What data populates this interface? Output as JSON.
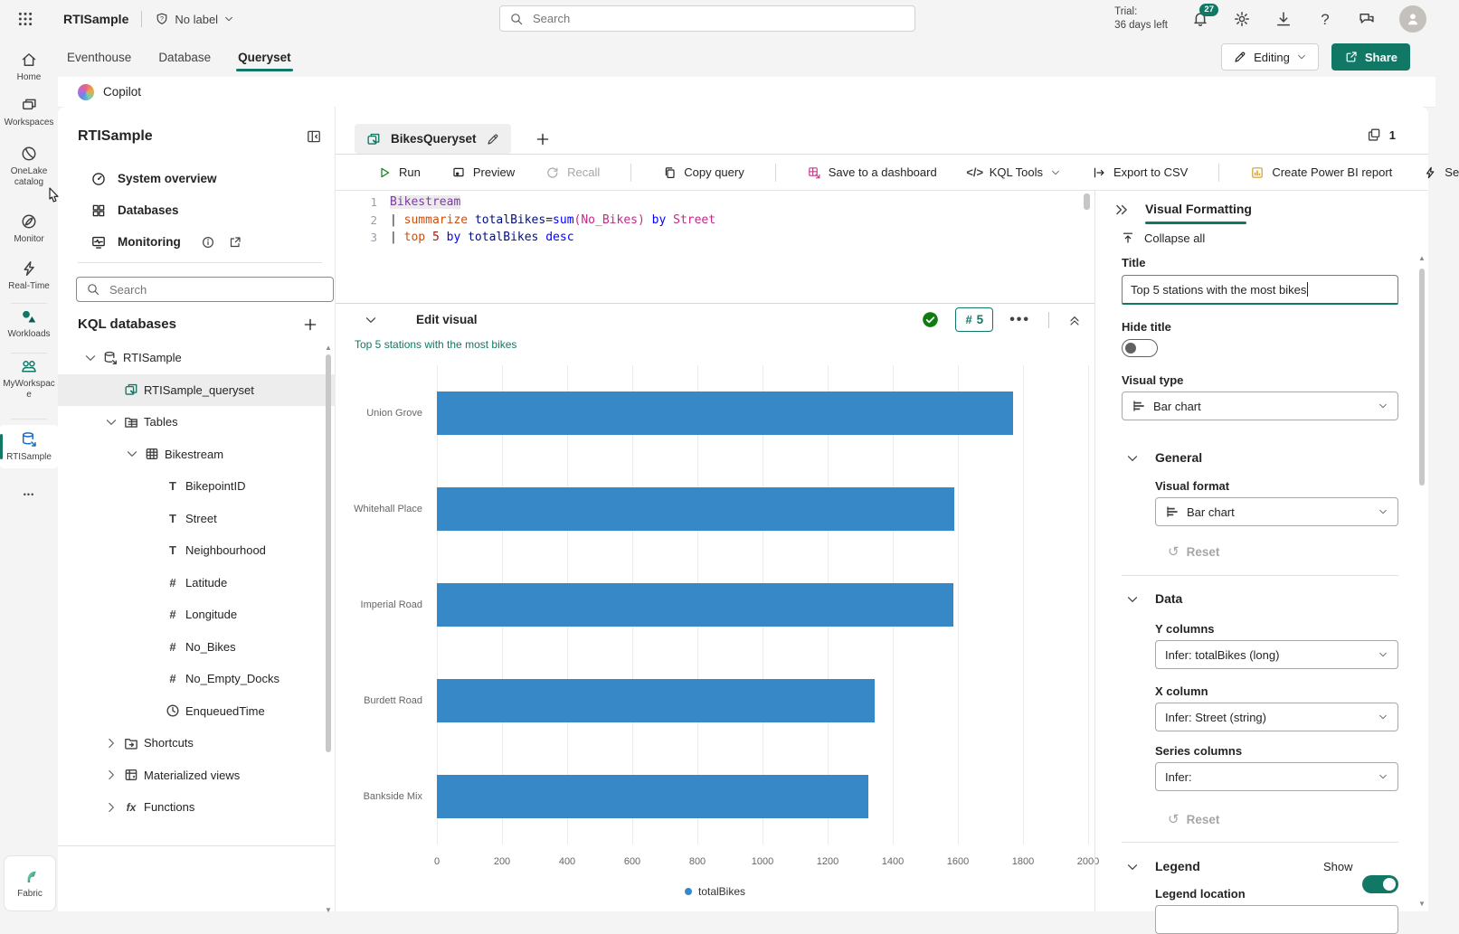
{
  "topbar": {
    "app_name": "RTISample",
    "label_button": "No label",
    "search_placeholder": "Search",
    "trial_line1": "Trial:",
    "trial_line2": "36 days left",
    "notification_count": "27"
  },
  "ribbon": {
    "tabs": [
      "Eventhouse",
      "Database",
      "Queryset"
    ],
    "active_tab": "Queryset",
    "editing_label": "Editing",
    "share_label": "Share"
  },
  "copilot": {
    "label": "Copilot"
  },
  "rail": {
    "items": [
      {
        "label": "Home",
        "icon": "home"
      },
      {
        "label": "Workspaces",
        "icon": "workspaces"
      },
      {
        "label": "OneLake catalog",
        "icon": "onelake"
      },
      {
        "label": "Monitor",
        "icon": "monitor"
      },
      {
        "label": "Real-Time",
        "icon": "realtime"
      },
      {
        "label": "Workloads",
        "icon": "workloads"
      },
      {
        "label": "MyWorkspace",
        "icon": "people"
      },
      {
        "label": "RTISample",
        "icon": "dbarrow"
      }
    ],
    "more": "•••",
    "fabric_label": "Fabric"
  },
  "explorer": {
    "title": "RTISample",
    "menu": [
      {
        "label": "System overview",
        "icon": "gauge"
      },
      {
        "label": "Databases",
        "icon": "grid4"
      },
      {
        "label": "Monitoring",
        "icon": "pulse"
      }
    ],
    "search_placeholder": "Search",
    "section_title": "KQL databases",
    "tree": [
      {
        "label": "RTISample",
        "icon": "dbarrow",
        "chevron": "down",
        "level": 0
      },
      {
        "label": "RTISample_queryset",
        "icon": "queryset",
        "level": 1,
        "selected": true
      },
      {
        "label": "Tables",
        "icon": "tablesfolder",
        "chevron": "down",
        "level": 1
      },
      {
        "label": "Bikestream",
        "icon": "table",
        "chevron": "down",
        "level": 2
      },
      {
        "label": "BikepointID",
        "icon": "text",
        "level": 3
      },
      {
        "label": "Street",
        "icon": "text",
        "level": 3
      },
      {
        "label": "Neighbourhood",
        "icon": "text",
        "level": 3
      },
      {
        "label": "Latitude",
        "icon": "number",
        "level": 3
      },
      {
        "label": "Longitude",
        "icon": "number",
        "level": 3
      },
      {
        "label": "No_Bikes",
        "icon": "number",
        "level": 3
      },
      {
        "label": "No_Empty_Docks",
        "icon": "number",
        "level": 3
      },
      {
        "label": "EnqueuedTime",
        "icon": "clock",
        "level": 3
      },
      {
        "label": "Shortcuts",
        "icon": "shortcuts",
        "chevron": "right",
        "level": 1
      },
      {
        "label": "Materialized views",
        "icon": "matviews",
        "chevron": "right",
        "level": 1
      },
      {
        "label": "Functions",
        "icon": "fx",
        "chevron": "right",
        "level": 1
      }
    ]
  },
  "query": {
    "tab_label": "BikesQueryset",
    "tab_count": "1",
    "toolbar": [
      {
        "label": "Run",
        "icon": "play"
      },
      {
        "label": "Preview",
        "icon": "preview"
      },
      {
        "label": "Recall",
        "icon": "recall",
        "disabled": true,
        "divider_after": true
      },
      {
        "label": "Copy query",
        "icon": "copy",
        "divider_after": true
      },
      {
        "label": "Save to a dashboard",
        "icon": "dashboard"
      },
      {
        "label": "KQL Tools",
        "icon": "code",
        "chevron": true
      },
      {
        "label": "Export to CSV",
        "icon": "export",
        "divider_after": true
      },
      {
        "label": "Create Power BI report",
        "icon": "powerbi"
      },
      {
        "label": "Se",
        "icon": "bolt"
      }
    ],
    "code": [
      {
        "num": "1",
        "tokens": [
          {
            "t": "Bikestream",
            "c": "table",
            "hl": true
          }
        ]
      },
      {
        "num": "2",
        "tokens": [
          {
            "t": "| ",
            "c": "plain"
          },
          {
            "t": "summarize",
            "c": "op"
          },
          {
            "t": " ",
            "c": "plain"
          },
          {
            "t": "totalBikes",
            "c": "var"
          },
          {
            "t": "=",
            "c": "plain"
          },
          {
            "t": "sum",
            "c": "fn"
          },
          {
            "t": "(",
            "c": "col"
          },
          {
            "t": "No_Bikes",
            "c": "col"
          },
          {
            "t": ")",
            "c": "col"
          },
          {
            "t": " ",
            "c": "plain"
          },
          {
            "t": "by",
            "c": "kw"
          },
          {
            "t": " ",
            "c": "plain"
          },
          {
            "t": "Street",
            "c": "col"
          }
        ]
      },
      {
        "num": "3",
        "tokens": [
          {
            "t": "| ",
            "c": "plain"
          },
          {
            "t": "top",
            "c": "op"
          },
          {
            "t": " ",
            "c": "plain"
          },
          {
            "t": "5",
            "c": "num"
          },
          {
            "t": " ",
            "c": "plain"
          },
          {
            "t": "by",
            "c": "kw"
          },
          {
            "t": " ",
            "c": "plain"
          },
          {
            "t": "totalBikes",
            "c": "var"
          },
          {
            "t": " ",
            "c": "plain"
          },
          {
            "t": "desc",
            "c": "kw"
          }
        ]
      }
    ]
  },
  "visual": {
    "header": "Edit visual",
    "result_count": "5",
    "chart_title": "Top 5 stations with the most bikes"
  },
  "chart_data": {
    "type": "bar",
    "orientation": "horizontal",
    "title": "Top 5 stations with the most bikes",
    "categories": [
      "Union Grove",
      "Whitehall Place",
      "Imperial Road",
      "Burdett Road",
      "Bankside Mix"
    ],
    "series": [
      {
        "name": "totalBikes",
        "values": [
          1770,
          1590,
          1585,
          1345,
          1325
        ]
      }
    ],
    "xlim": [
      0,
      2000
    ],
    "tick_step": 200,
    "x_tick_labels": [
      "0",
      "200",
      "400",
      "600",
      "800",
      "1000",
      "1200",
      "1400",
      "1600",
      "1800",
      "2000"
    ],
    "legend": [
      "totalBikes"
    ],
    "legend_position": "bottom",
    "grid": true,
    "bar_color": "#3688c6"
  },
  "format_panel": {
    "title": "Visual Formatting",
    "collapse_all": "Collapse all",
    "title_field": {
      "label": "Title",
      "value": "Top 5 stations with the most bikes"
    },
    "hide_title": {
      "label": "Hide title",
      "value": false
    },
    "visual_type": {
      "label": "Visual type",
      "value": "Bar chart"
    },
    "sections": {
      "general": {
        "label": "General",
        "visual_format": {
          "label": "Visual format",
          "value": "Bar chart"
        },
        "reset_label": "Reset"
      },
      "data": {
        "label": "Data",
        "y_columns": {
          "label": "Y columns",
          "value": "Infer: totalBikes (long)"
        },
        "x_column": {
          "label": "X column",
          "value": "Infer: Street (string)"
        },
        "series_columns": {
          "label": "Series columns",
          "value": "Infer:"
        },
        "reset_label": "Reset"
      },
      "legend": {
        "label": "Legend",
        "show_label": "Show",
        "show": true,
        "location_label": "Legend location"
      }
    }
  },
  "colors": {
    "accent": "#117865",
    "bar": "#3688c6",
    "run_green": "#107c10",
    "success_green": "#107c10",
    "dashboard_pink": "#c73e8c",
    "powerbi_yellow": "#e8a33d",
    "code": {
      "table": "#7a3e9d",
      "op": "#ca5010",
      "var": "#001080",
      "fn": "#0000ff",
      "col": "#c7268b",
      "kw": "#0000ff",
      "num": "#a31515",
      "plain": "#242424"
    }
  }
}
